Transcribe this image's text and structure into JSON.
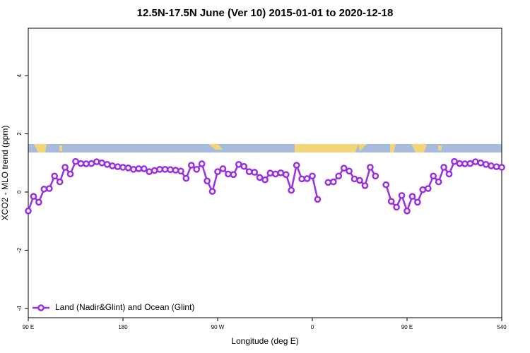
{
  "chart_data": {
    "type": "line",
    "title": "12.5N-17.5N June (Ver 10)   2015-01-01 to 2020-12-18",
    "xlabel": "Longitude (deg E)",
    "ylabel": "XCO2 - MLO trend (ppm)",
    "x": [
      90,
      95,
      100,
      105,
      110,
      115,
      120,
      125,
      130,
      135,
      140,
      145,
      150,
      155,
      160,
      165,
      170,
      175,
      180,
      185,
      190,
      195,
      200,
      205,
      210,
      215,
      220,
      225,
      230,
      235,
      240,
      245,
      250,
      255,
      260,
      265,
      270,
      275,
      280,
      285,
      290,
      295,
      300,
      305,
      310,
      315,
      320,
      325,
      330,
      335,
      340,
      345,
      350,
      355,
      360,
      365,
      370,
      375,
      380,
      385,
      390,
      395,
      400,
      405,
      410,
      415,
      420,
      425,
      430,
      435,
      440,
      445,
      450,
      455,
      460,
      465,
      470,
      475,
      480,
      485,
      490,
      495,
      500,
      505,
      510,
      515,
      520,
      525,
      530,
      535,
      540
    ],
    "series": [
      {
        "name": "Land (Nadir&Glint) and Ocean (Glint)",
        "color": "#9b2fe0",
        "values": [
          -0.65,
          -0.15,
          -0.35,
          0.1,
          0.12,
          0.55,
          0.35,
          0.85,
          0.62,
          1.05,
          0.98,
          0.97,
          0.98,
          1.04,
          1.0,
          0.95,
          0.9,
          0.87,
          0.85,
          0.83,
          0.78,
          0.8,
          0.8,
          0.7,
          0.74,
          0.78,
          0.78,
          0.77,
          0.75,
          0.72,
          0.47,
          0.92,
          0.78,
          0.97,
          0.38,
          0.02,
          0.7,
          0.8,
          0.62,
          0.6,
          0.95,
          0.88,
          0.7,
          0.68,
          0.5,
          0.42,
          0.65,
          0.62,
          0.66,
          0.6,
          0.06,
          0.92,
          0.45,
          0.46,
          0.55,
          -0.25,
          null,
          0.33,
          0.35,
          0.55,
          0.82,
          0.72,
          0.45,
          0.4,
          0.22,
          0.85,
          0.55,
          null,
          0.25,
          -0.32,
          -0.52,
          -0.12,
          -0.65,
          -0.15,
          -0.35,
          0.08,
          0.12,
          0.55,
          0.35,
          0.85,
          0.62,
          1.05,
          0.98,
          0.97,
          0.98,
          1.04,
          1.0,
          0.95,
          0.9,
          0.87,
          0.85
        ]
      }
    ],
    "xlim": [
      90,
      540
    ],
    "xticks": [
      {
        "value": 90,
        "label": "90 E"
      },
      180,
      {
        "value": 270,
        "label": "90 W"
      },
      {
        "value": 360,
        "label": "0"
      },
      {
        "value": 450,
        "label": "90 E"
      },
      540
    ],
    "ylim": [
      -4.32,
      5.63
    ],
    "yticks": [
      -4,
      -2,
      0,
      2,
      4
    ],
    "legend": "lower left"
  }
}
